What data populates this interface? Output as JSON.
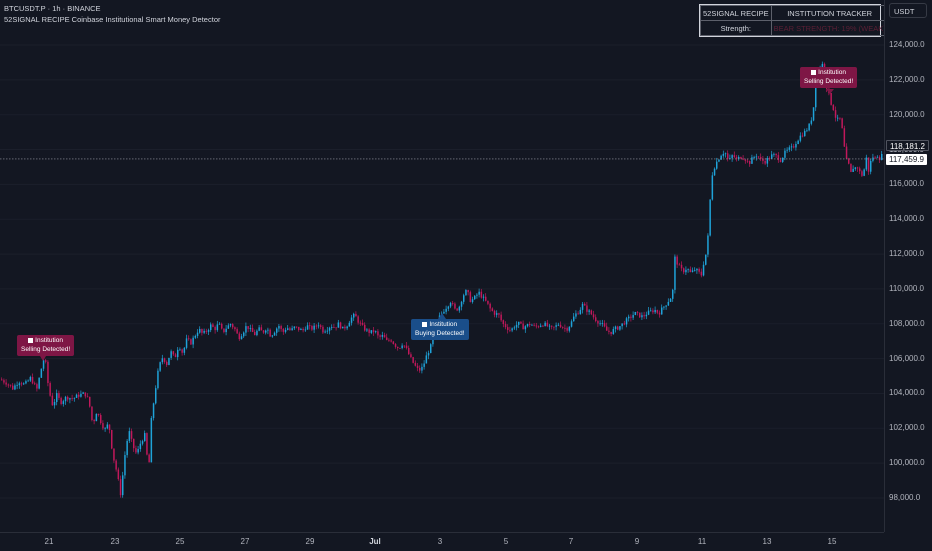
{
  "header": {
    "symbol_line": "BTCUSDT.P · 1h · BINANCE",
    "indicator_line": "52SIGNAL RECIPE Coinbase Institutional Smart Money Detector"
  },
  "currency_button": "USDT",
  "tracker": {
    "col1_header": "52SIGNAL RECIPE",
    "col2_header": "INSTITUTION TRACKER",
    "row_label": "Strength:",
    "row_value": "BEAR STRENGTH: 19% (WEAK)"
  },
  "price_axis": {
    "ticks": [
      "124,000.0",
      "122,000.0",
      "120,000.0",
      "118,000.0",
      "116,000.0",
      "114,000.0",
      "112,000.0",
      "110,000.0",
      "108,000.0",
      "106,000.0",
      "104,000.0",
      "102,000.0",
      "100,000.0",
      "98,000.0"
    ],
    "tick_values": [
      124000,
      122000,
      120000,
      118000,
      116000,
      114000,
      112000,
      110000,
      108000,
      106000,
      104000,
      102000,
      100000,
      98000
    ],
    "last_price_label": "118,181.2",
    "crosshair_price_label": "117,459.9",
    "last_price": 118181.2,
    "crosshair_price": 117459.9
  },
  "time_axis": {
    "ticks": [
      {
        "label": "21",
        "major": false
      },
      {
        "label": "23",
        "major": false
      },
      {
        "label": "25",
        "major": false
      },
      {
        "label": "27",
        "major": false
      },
      {
        "label": "29",
        "major": false
      },
      {
        "label": "Jul",
        "major": true
      },
      {
        "label": "3",
        "major": false
      },
      {
        "label": "5",
        "major": false
      },
      {
        "label": "7",
        "major": false
      },
      {
        "label": "9",
        "major": false
      },
      {
        "label": "11",
        "major": false
      },
      {
        "label": "13",
        "major": false
      },
      {
        "label": "15",
        "major": false
      }
    ]
  },
  "signals": [
    {
      "type": "sell",
      "line1": "Institution",
      "line2": "Selling Detected!"
    },
    {
      "type": "buy",
      "line1": "Institution",
      "line2": "Buying Detected!"
    },
    {
      "type": "sell",
      "line1": "Institution",
      "line2": "Selling Detected!"
    }
  ],
  "colors": {
    "background": "#131722",
    "bull_candle": "#1fa3d9",
    "bear_candle": "#c2185b",
    "sell_label": "#7e1645",
    "buy_label": "#1a4e8a"
  },
  "chart_data": {
    "type": "candlestick",
    "symbol": "BTCUSDT.P",
    "interval": "1h",
    "ylim": [
      97000,
      125000
    ],
    "x_tick_labels": [
      "21",
      "23",
      "25",
      "27",
      "29",
      "Jul",
      "3",
      "5",
      "7",
      "9",
      "11",
      "13",
      "15"
    ],
    "price_path": [
      [
        0,
        104800
      ],
      [
        6,
        104600
      ],
      [
        12,
        104300
      ],
      [
        18,
        104700
      ],
      [
        24,
        104500
      ],
      [
        30,
        104900
      ],
      [
        36,
        104200
      ],
      [
        40,
        105300
      ],
      [
        44,
        106200
      ],
      [
        48,
        104200
      ],
      [
        52,
        103300
      ],
      [
        56,
        103900
      ],
      [
        60,
        103500
      ],
      [
        66,
        103800
      ],
      [
        72,
        103700
      ],
      [
        78,
        103900
      ],
      [
        84,
        104000
      ],
      [
        88,
        103600
      ],
      [
        92,
        102200
      ],
      [
        96,
        103000
      ],
      [
        100,
        102400
      ],
      [
        104,
        101900
      ],
      [
        108,
        102300
      ],
      [
        112,
        100500
      ],
      [
        116,
        99500
      ],
      [
        120,
        98200
      ],
      [
        124,
        100400
      ],
      [
        128,
        101900
      ],
      [
        132,
        101000
      ],
      [
        136,
        100500
      ],
      [
        140,
        101200
      ],
      [
        144,
        101600
      ],
      [
        148,
        99500
      ],
      [
        150,
        102200
      ],
      [
        154,
        104000
      ],
      [
        158,
        105500
      ],
      [
        162,
        106100
      ],
      [
        166,
        105700
      ],
      [
        170,
        106400
      ],
      [
        174,
        106000
      ],
      [
        178,
        106800
      ],
      [
        182,
        106300
      ],
      [
        186,
        107100
      ],
      [
        190,
        106900
      ],
      [
        194,
        107300
      ],
      [
        198,
        107700
      ],
      [
        202,
        107400
      ],
      [
        206,
        107600
      ],
      [
        210,
        107900
      ],
      [
        214,
        107700
      ],
      [
        218,
        108000
      ],
      [
        222,
        107500
      ],
      [
        226,
        107800
      ],
      [
        230,
        108000
      ],
      [
        234,
        107700
      ],
      [
        238,
        107200
      ],
      [
        242,
        107500
      ],
      [
        246,
        107900
      ],
      [
        250,
        107600
      ],
      [
        254,
        107400
      ],
      [
        258,
        107700
      ],
      [
        262,
        107500
      ],
      [
        266,
        107800
      ],
      [
        270,
        107300
      ],
      [
        274,
        107600
      ],
      [
        278,
        107900
      ],
      [
        282,
        107500
      ],
      [
        286,
        107800
      ],
      [
        290,
        107600
      ],
      [
        294,
        107800
      ],
      [
        298,
        107700
      ],
      [
        302,
        107600
      ],
      [
        306,
        107900
      ],
      [
        310,
        107700
      ],
      [
        314,
        107800
      ],
      [
        318,
        108000
      ],
      [
        322,
        107600
      ],
      [
        326,
        107700
      ],
      [
        330,
        107900
      ],
      [
        334,
        107800
      ],
      [
        338,
        108000
      ],
      [
        342,
        107700
      ],
      [
        346,
        107900
      ],
      [
        350,
        108300
      ],
      [
        354,
        108500
      ],
      [
        358,
        108100
      ],
      [
        362,
        107800
      ],
      [
        366,
        107600
      ],
      [
        370,
        107500
      ],
      [
        374,
        107600
      ],
      [
        378,
        107200
      ],
      [
        382,
        107300
      ],
      [
        386,
        107000
      ],
      [
        390,
        107100
      ],
      [
        394,
        106800
      ],
      [
        398,
        106600
      ],
      [
        402,
        106900
      ],
      [
        406,
        106500
      ],
      [
        410,
        106000
      ],
      [
        414,
        105600
      ],
      [
        418,
        105300
      ],
      [
        422,
        105500
      ],
      [
        426,
        106200
      ],
      [
        430,
        106700
      ],
      [
        434,
        107500
      ],
      [
        438,
        108300
      ],
      [
        442,
        108700
      ],
      [
        446,
        109000
      ],
      [
        450,
        109300
      ],
      [
        454,
        108800
      ],
      [
        458,
        108900
      ],
      [
        462,
        109600
      ],
      [
        466,
        109900
      ],
      [
        470,
        109300
      ],
      [
        474,
        109500
      ],
      [
        478,
        109800
      ],
      [
        482,
        109500
      ],
      [
        486,
        109200
      ],
      [
        490,
        108800
      ],
      [
        494,
        108600
      ],
      [
        498,
        108500
      ],
      [
        502,
        108000
      ],
      [
        506,
        107800
      ],
      [
        510,
        107600
      ],
      [
        514,
        107900
      ],
      [
        518,
        108000
      ],
      [
        522,
        107800
      ],
      [
        526,
        107900
      ],
      [
        530,
        108000
      ],
      [
        534,
        107800
      ],
      [
        538,
        107900
      ],
      [
        542,
        108000
      ],
      [
        546,
        107900
      ],
      [
        550,
        107700
      ],
      [
        554,
        107800
      ],
      [
        558,
        108000
      ],
      [
        562,
        107800
      ],
      [
        566,
        107700
      ],
      [
        570,
        108000
      ],
      [
        574,
        108500
      ],
      [
        578,
        108700
      ],
      [
        582,
        109100
      ],
      [
        586,
        108800
      ],
      [
        590,
        108600
      ],
      [
        594,
        108300
      ],
      [
        598,
        108100
      ],
      [
        602,
        107900
      ],
      [
        606,
        107600
      ],
      [
        610,
        107500
      ],
      [
        614,
        107700
      ],
      [
        618,
        107800
      ],
      [
        622,
        108000
      ],
      [
        626,
        108200
      ],
      [
        630,
        108400
      ],
      [
        634,
        108600
      ],
      [
        638,
        108500
      ],
      [
        642,
        108400
      ],
      [
        646,
        108600
      ],
      [
        650,
        108700
      ],
      [
        654,
        108800
      ],
      [
        658,
        108600
      ],
      [
        662,
        108900
      ],
      [
        666,
        109200
      ],
      [
        670,
        109500
      ],
      [
        672,
        109900
      ],
      [
        674,
        111800
      ],
      [
        678,
        111300
      ],
      [
        682,
        111000
      ],
      [
        686,
        111200
      ],
      [
        690,
        110900
      ],
      [
        694,
        111100
      ],
      [
        698,
        111000
      ],
      [
        700,
        110600
      ],
      [
        702,
        111300
      ],
      [
        706,
        112200
      ],
      [
        708,
        113500
      ],
      [
        710,
        115800
      ],
      [
        712,
        116800
      ],
      [
        716,
        117300
      ],
      [
        720,
        117700
      ],
      [
        724,
        117900
      ],
      [
        728,
        117300
      ],
      [
        732,
        117700
      ],
      [
        736,
        117400
      ],
      [
        740,
        117600
      ],
      [
        744,
        117500
      ],
      [
        748,
        117200
      ],
      [
        752,
        117500
      ],
      [
        756,
        117700
      ],
      [
        760,
        117400
      ],
      [
        764,
        117300
      ],
      [
        768,
        117500
      ],
      [
        772,
        117700
      ],
      [
        776,
        117600
      ],
      [
        780,
        117400
      ],
      [
        784,
        117800
      ],
      [
        788,
        118000
      ],
      [
        792,
        118100
      ],
      [
        796,
        118500
      ],
      [
        800,
        118800
      ],
      [
        804,
        119000
      ],
      [
        808,
        119300
      ],
      [
        812,
        120000
      ],
      [
        815,
        121700
      ],
      [
        818,
        122500
      ],
      [
        821,
        123100
      ],
      [
        824,
        122000
      ],
      [
        827,
        121400
      ],
      [
        830,
        120700
      ],
      [
        833,
        120300
      ],
      [
        836,
        119600
      ],
      [
        838,
        119800
      ],
      [
        840,
        119700
      ],
      [
        842,
        118900
      ],
      [
        844,
        117900
      ],
      [
        846,
        117300
      ],
      [
        848,
        117100
      ],
      [
        850,
        116600
      ],
      [
        852,
        117000
      ],
      [
        854,
        116800
      ],
      [
        856,
        117300
      ],
      [
        858,
        116500
      ],
      [
        860,
        116900
      ],
      [
        862,
        116300
      ],
      [
        864,
        117100
      ],
      [
        866,
        117600
      ],
      [
        868,
        116700
      ],
      [
        870,
        117300
      ],
      [
        872,
        117600
      ],
      [
        874,
        117400
      ],
      [
        876,
        117800
      ],
      [
        878,
        117400
      ],
      [
        880,
        117700
      ],
      [
        884,
        117500
      ]
    ]
  }
}
